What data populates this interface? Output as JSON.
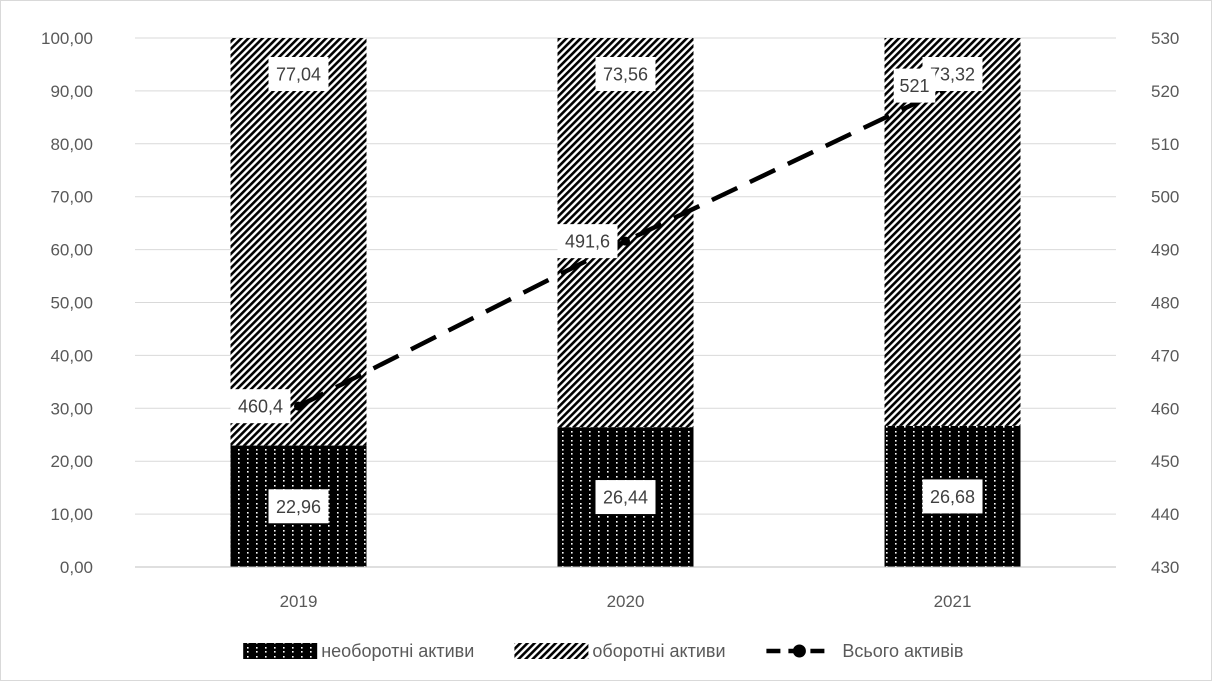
{
  "chart_data": {
    "type": "bar",
    "stacked": true,
    "categories": [
      "2019",
      "2020",
      "2021"
    ],
    "series": [
      {
        "name": "необоротні активи",
        "axis": "left",
        "pattern": "dotted-dark",
        "color": "#000000",
        "values": [
          22.96,
          26.44,
          26.68
        ],
        "labels": [
          "22,96",
          "26,44",
          "26,68"
        ]
      },
      {
        "name": "оборотні активи",
        "axis": "left",
        "pattern": "diagonal-hatch",
        "color": "#000000",
        "values": [
          77.04,
          73.56,
          73.32
        ],
        "labels": [
          "77,04",
          "73,56",
          "73,32"
        ]
      },
      {
        "name": "Всього активів",
        "type": "line",
        "axis": "right",
        "style": "dashed",
        "color": "#000000",
        "values": [
          460.4,
          491.6,
          521
        ],
        "labels": [
          "460,4",
          "491,6",
          "521"
        ]
      }
    ],
    "left_axis": {
      "ylim": [
        0,
        100
      ],
      "ticks": [
        "0,00",
        "10,00",
        "20,00",
        "30,00",
        "40,00",
        "50,00",
        "60,00",
        "70,00",
        "80,00",
        "90,00",
        "100,00"
      ]
    },
    "right_axis": {
      "ylim": [
        430,
        530
      ],
      "ticks": [
        "430",
        "440",
        "450",
        "460",
        "470",
        "480",
        "490",
        "500",
        "510",
        "520",
        "530"
      ]
    },
    "grid": true,
    "legend_position": "bottom"
  }
}
